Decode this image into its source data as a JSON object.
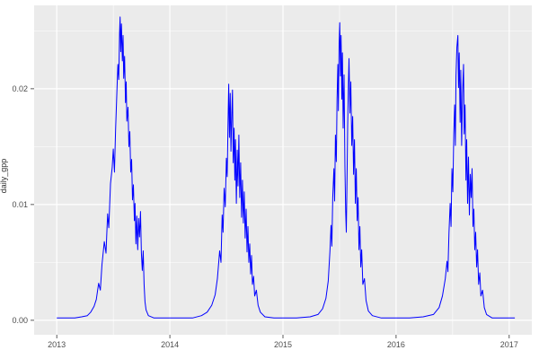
{
  "chart_data": {
    "type": "line",
    "title": "",
    "xlabel": "",
    "ylabel": "daily_gpp",
    "legend": "none",
    "grid": true,
    "xlim": [
      2012.8,
      2017.2
    ],
    "ylim": [
      -0.00125,
      0.0272
    ],
    "x_ticks": [
      2013,
      2014,
      2015,
      2016,
      2017
    ],
    "x_tick_labels": [
      "2013",
      "2014",
      "2015",
      "2016",
      "2017"
    ],
    "x_minor_ticks": [
      2013.5,
      2014.5,
      2015.5,
      2016.5
    ],
    "y_ticks": [
      0.0,
      0.01,
      0.02
    ],
    "y_tick_labels": [
      "0.00",
      "0.01",
      "0.02"
    ],
    "y_minor_ticks": [
      0.005,
      0.015,
      0.025
    ],
    "style": {
      "panel_bg": "#EBEBEB",
      "grid_major": "#FFFFFF",
      "grid_minor": "#FFFFFF",
      "line_color": "#0000FF",
      "axis_text": "#4D4D4D",
      "tick_color": "#333333"
    },
    "series": [
      {
        "name": "daily_gpp",
        "points": [
          [
            2013.0,
            0.0002
          ],
          [
            2013.08,
            0.0002
          ],
          [
            2013.16,
            0.0002
          ],
          [
            2013.22,
            0.0003
          ],
          [
            2013.27,
            0.0004
          ],
          [
            2013.3,
            0.0007
          ],
          [
            2013.33,
            0.0012
          ],
          [
            2013.35,
            0.0018
          ],
          [
            2013.37,
            0.0032
          ],
          [
            2013.385,
            0.0026
          ],
          [
            2013.4,
            0.0048
          ],
          [
            2013.42,
            0.0068
          ],
          [
            2013.435,
            0.0058
          ],
          [
            2013.45,
            0.0092
          ],
          [
            2013.46,
            0.008
          ],
          [
            2013.475,
            0.0118
          ],
          [
            2013.49,
            0.0132
          ],
          [
            2013.5,
            0.0148
          ],
          [
            2013.51,
            0.0128
          ],
          [
            2013.52,
            0.0165
          ],
          [
            2013.53,
            0.0192
          ],
          [
            2013.54,
            0.0221
          ],
          [
            2013.548,
            0.0208
          ],
          [
            2013.555,
            0.0248
          ],
          [
            2013.56,
            0.0262
          ],
          [
            2013.566,
            0.0232
          ],
          [
            2013.572,
            0.0256
          ],
          [
            2013.58,
            0.0224
          ],
          [
            2013.586,
            0.0246
          ],
          [
            2013.592,
            0.0209
          ],
          [
            2013.6,
            0.0228
          ],
          [
            2013.608,
            0.0188
          ],
          [
            2013.614,
            0.0206
          ],
          [
            2013.62,
            0.0172
          ],
          [
            2013.63,
            0.0184
          ],
          [
            2013.638,
            0.015
          ],
          [
            2013.646,
            0.0163
          ],
          [
            2013.654,
            0.0128
          ],
          [
            2013.662,
            0.0139
          ],
          [
            2013.67,
            0.0104
          ],
          [
            2013.678,
            0.0117
          ],
          [
            2013.686,
            0.0086
          ],
          [
            2013.692,
            0.0101
          ],
          [
            2013.7,
            0.0066
          ],
          [
            2013.708,
            0.009
          ],
          [
            2013.716,
            0.0061
          ],
          [
            2013.724,
            0.0088
          ],
          [
            2013.732,
            0.0072
          ],
          [
            2013.74,
            0.0094
          ],
          [
            2013.748,
            0.0058
          ],
          [
            2013.756,
            0.0043
          ],
          [
            2013.764,
            0.006
          ],
          [
            2013.772,
            0.0031
          ],
          [
            2013.78,
            0.0016
          ],
          [
            2013.79,
            0.0009
          ],
          [
            2013.81,
            0.0004
          ],
          [
            2013.86,
            0.0002
          ],
          [
            2013.93,
            0.0002
          ],
          [
            2014.0,
            0.0002
          ],
          [
            2014.1,
            0.0002
          ],
          [
            2014.2,
            0.0002
          ],
          [
            2014.28,
            0.0004
          ],
          [
            2014.33,
            0.0007
          ],
          [
            2014.37,
            0.0013
          ],
          [
            2014.4,
            0.0022
          ],
          [
            2014.42,
            0.0036
          ],
          [
            2014.44,
            0.006
          ],
          [
            2014.452,
            0.005
          ],
          [
            2014.462,
            0.0091
          ],
          [
            2014.47,
            0.0076
          ],
          [
            2014.48,
            0.0114
          ],
          [
            2014.49,
            0.0098
          ],
          [
            2014.5,
            0.014
          ],
          [
            2014.507,
            0.0124
          ],
          [
            2014.514,
            0.0169
          ],
          [
            2014.52,
            0.0204
          ],
          [
            2014.527,
            0.0158
          ],
          [
            2014.534,
            0.0196
          ],
          [
            2014.54,
            0.0146
          ],
          [
            2014.548,
            0.0181
          ],
          [
            2014.554,
            0.0199
          ],
          [
            2014.56,
            0.0136
          ],
          [
            2014.568,
            0.0166
          ],
          [
            2014.574,
            0.0121
          ],
          [
            2014.58,
            0.0156
          ],
          [
            2014.588,
            0.0101
          ],
          [
            2014.596,
            0.0147
          ],
          [
            2014.602,
            0.0116
          ],
          [
            2014.61,
            0.016
          ],
          [
            2014.618,
            0.0106
          ],
          [
            2014.626,
            0.0136
          ],
          [
            2014.634,
            0.0089
          ],
          [
            2014.642,
            0.0121
          ],
          [
            2014.65,
            0.0084
          ],
          [
            2014.658,
            0.0111
          ],
          [
            2014.666,
            0.0071
          ],
          [
            2014.674,
            0.0096
          ],
          [
            2014.682,
            0.0059
          ],
          [
            2014.69,
            0.0081
          ],
          [
            2014.698,
            0.005
          ],
          [
            2014.706,
            0.0066
          ],
          [
            2014.714,
            0.004
          ],
          [
            2014.722,
            0.0056
          ],
          [
            2014.73,
            0.0031
          ],
          [
            2014.74,
            0.0038
          ],
          [
            2014.75,
            0.0021
          ],
          [
            2014.765,
            0.0026
          ],
          [
            2014.78,
            0.0013
          ],
          [
            2014.8,
            0.0007
          ],
          [
            2014.84,
            0.0003
          ],
          [
            2014.92,
            0.0002
          ],
          [
            2015.0,
            0.0002
          ],
          [
            2015.12,
            0.0002
          ],
          [
            2015.24,
            0.0003
          ],
          [
            2015.31,
            0.0005
          ],
          [
            2015.35,
            0.001
          ],
          [
            2015.38,
            0.0019
          ],
          [
            2015.4,
            0.0034
          ],
          [
            2015.415,
            0.006
          ],
          [
            2015.425,
            0.0082
          ],
          [
            2015.432,
            0.0064
          ],
          [
            2015.44,
            0.0106
          ],
          [
            2015.45,
            0.0131
          ],
          [
            2015.457,
            0.0103
          ],
          [
            2015.464,
            0.016
          ],
          [
            2015.472,
            0.0137
          ],
          [
            2015.478,
            0.0191
          ],
          [
            2015.485,
            0.0221
          ],
          [
            2015.49,
            0.0181
          ],
          [
            2015.496,
            0.0239
          ],
          [
            2015.502,
            0.0257
          ],
          [
            2015.508,
            0.0211
          ],
          [
            2015.514,
            0.0246
          ],
          [
            2015.52,
            0.0191
          ],
          [
            2015.526,
            0.0231
          ],
          [
            2015.532,
            0.0166
          ],
          [
            2015.54,
            0.0212
          ],
          [
            2015.548,
            0.0131
          ],
          [
            2015.554,
            0.0094
          ],
          [
            2015.56,
            0.0076
          ],
          [
            2015.566,
            0.0122
          ],
          [
            2015.572,
            0.0167
          ],
          [
            2015.578,
            0.0202
          ],
          [
            2015.584,
            0.0226
          ],
          [
            2015.592,
            0.0179
          ],
          [
            2015.6,
            0.0206
          ],
          [
            2015.608,
            0.0151
          ],
          [
            2015.616,
            0.0176
          ],
          [
            2015.624,
            0.0126
          ],
          [
            2015.632,
            0.0156
          ],
          [
            2015.64,
            0.0101
          ],
          [
            2015.648,
            0.0131
          ],
          [
            2015.656,
            0.0086
          ],
          [
            2015.664,
            0.0106
          ],
          [
            2015.672,
            0.0061
          ],
          [
            2015.68,
            0.0081
          ],
          [
            2015.688,
            0.0046
          ],
          [
            2015.696,
            0.0061
          ],
          [
            2015.706,
            0.0031
          ],
          [
            2015.72,
            0.0036
          ],
          [
            2015.735,
            0.0017
          ],
          [
            2015.755,
            0.0008
          ],
          [
            2015.79,
            0.0004
          ],
          [
            2015.87,
            0.0002
          ],
          [
            2016.0,
            0.0002
          ],
          [
            2016.12,
            0.0002
          ],
          [
            2016.24,
            0.0003
          ],
          [
            2016.33,
            0.0005
          ],
          [
            2016.38,
            0.0011
          ],
          [
            2016.41,
            0.0021
          ],
          [
            2016.435,
            0.0036
          ],
          [
            2016.45,
            0.0051
          ],
          [
            2016.458,
            0.0042
          ],
          [
            2016.468,
            0.0076
          ],
          [
            2016.478,
            0.0101
          ],
          [
            2016.486,
            0.0081
          ],
          [
            2016.494,
            0.0131
          ],
          [
            2016.502,
            0.0111
          ],
          [
            2016.51,
            0.0161
          ],
          [
            2016.518,
            0.0186
          ],
          [
            2016.524,
            0.0151
          ],
          [
            2016.53,
            0.0211
          ],
          [
            2016.538,
            0.0236
          ],
          [
            2016.546,
            0.0246
          ],
          [
            2016.552,
            0.0201
          ],
          [
            2016.558,
            0.0231
          ],
          [
            2016.566,
            0.0171
          ],
          [
            2016.572,
            0.0216
          ],
          [
            2016.58,
            0.0151
          ],
          [
            2016.588,
            0.0196
          ],
          [
            2016.596,
            0.0221
          ],
          [
            2016.602,
            0.0161
          ],
          [
            2016.61,
            0.0186
          ],
          [
            2016.618,
            0.0121
          ],
          [
            2016.624,
            0.0156
          ],
          [
            2016.632,
            0.0101
          ],
          [
            2016.64,
            0.0141
          ],
          [
            2016.648,
            0.0091
          ],
          [
            2016.656,
            0.0126
          ],
          [
            2016.664,
            0.0106
          ],
          [
            2016.672,
            0.0131
          ],
          [
            2016.68,
            0.0081
          ],
          [
            2016.688,
            0.0096
          ],
          [
            2016.696,
            0.0061
          ],
          [
            2016.704,
            0.0076
          ],
          [
            2016.712,
            0.0046
          ],
          [
            2016.72,
            0.0061
          ],
          [
            2016.73,
            0.0031
          ],
          [
            2016.74,
            0.0041
          ],
          [
            2016.75,
            0.0021
          ],
          [
            2016.765,
            0.0026
          ],
          [
            2016.78,
            0.0011
          ],
          [
            2016.8,
            0.0005
          ],
          [
            2016.85,
            0.0002
          ],
          [
            2016.93,
            0.0002
          ],
          [
            2017.0,
            0.0002
          ],
          [
            2017.05,
            0.0002
          ]
        ]
      }
    ]
  }
}
